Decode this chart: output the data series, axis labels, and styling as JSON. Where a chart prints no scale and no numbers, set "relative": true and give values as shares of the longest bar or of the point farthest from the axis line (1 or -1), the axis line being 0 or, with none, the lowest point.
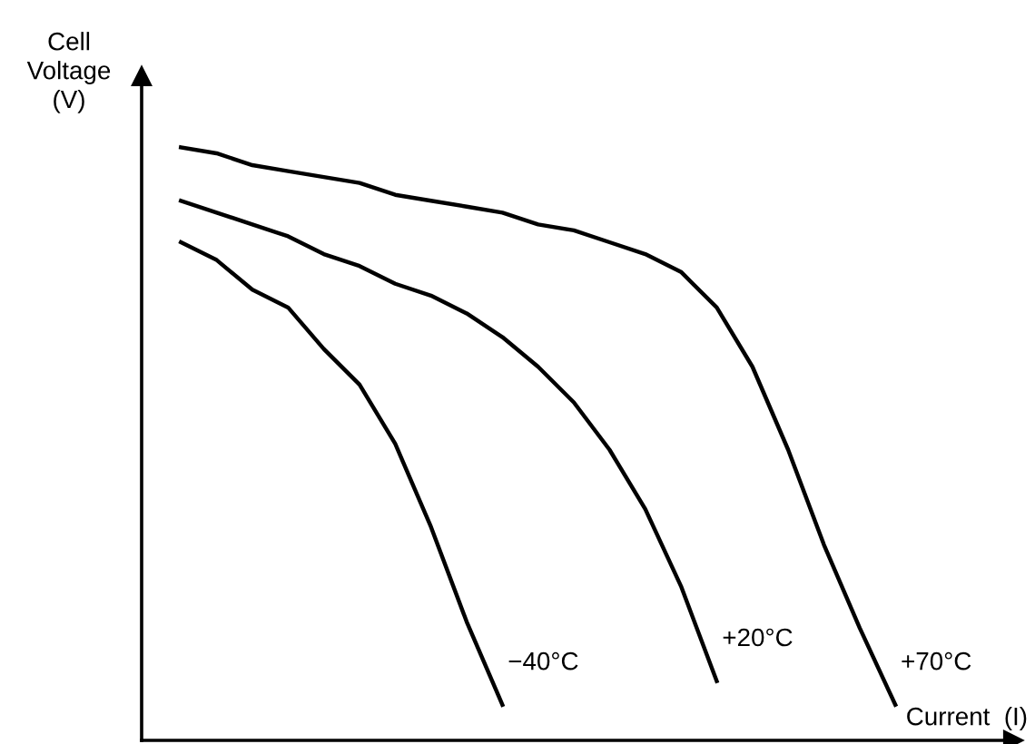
{
  "chart_data": {
    "type": "line",
    "relative": true,
    "xlabel": "Current  (I)",
    "ylabel": "Cell\nVoltage\n(V)",
    "legend": false,
    "marker": "none",
    "line_style": "solid",
    "categories": [
      null,
      null,
      null,
      null,
      null,
      null,
      null,
      null,
      null,
      null,
      null,
      null,
      null,
      null,
      null,
      null,
      null,
      null,
      null,
      null,
      null
    ],
    "series": [
      {
        "name": "−40°C",
        "color": "#000000",
        "values": [
          0.84,
          0.81,
          0.76,
          0.73,
          0.66,
          0.6,
          0.5,
          0.36,
          0.2,
          0.06,
          null,
          null,
          null,
          null,
          null,
          null,
          null,
          null,
          null,
          null,
          null
        ]
      },
      {
        "name": "+20°C",
        "color": "#000000",
        "values": [
          0.91,
          0.89,
          0.87,
          0.85,
          0.82,
          0.8,
          0.77,
          0.75,
          0.72,
          0.68,
          0.63,
          0.57,
          0.49,
          0.39,
          0.26,
          0.1,
          null,
          null,
          null,
          null,
          null
        ]
      },
      {
        "name": "+70°C",
        "color": "#000000",
        "values": [
          1.0,
          0.99,
          0.97,
          0.96,
          0.95,
          0.94,
          0.92,
          0.91,
          0.9,
          0.89,
          0.87,
          0.86,
          0.84,
          0.82,
          0.79,
          0.73,
          0.63,
          0.49,
          0.33,
          0.19,
          0.06
        ]
      }
    ]
  }
}
